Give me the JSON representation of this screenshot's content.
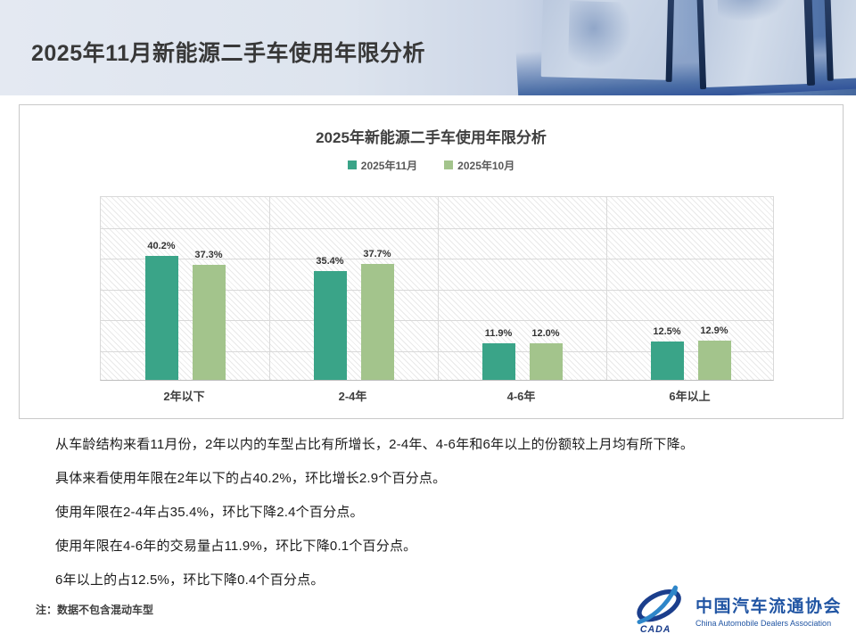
{
  "header": {
    "title": "2025年11月新能源二手车使用年限分析"
  },
  "chart": {
    "title": "2025年新能源二手车使用年限分析"
  },
  "chart_data": {
    "type": "bar",
    "title": "2025年新能源二手车使用年限分析",
    "categories": [
      "2年以下",
      "2-4年",
      "4-6年",
      "6年以上"
    ],
    "series": [
      {
        "name": "2025年11月",
        "color": "#3aa488",
        "values": [
          40.2,
          35.4,
          11.9,
          12.5
        ]
      },
      {
        "name": "2025年10月",
        "color": "#a3c48c",
        "values": [
          37.3,
          37.7,
          12.0,
          12.9
        ]
      }
    ],
    "value_suffix": "%",
    "ylim": [
      0,
      60
    ],
    "grid": true,
    "grid_step": 10,
    "legend_position": "top",
    "plot_background": "diagonal-hatch"
  },
  "body": {
    "paragraphs": [
      "从车龄结构来看11月份，2年以内的车型占比有所增长，2-4年、4-6年和6年以上的份额较上月均有所下降。",
      "具体来看使用年限在2年以下的占40.2%，环比增长2.9个百分点。",
      "使用年限在2-4年占35.4%，环比下降2.4个百分点。",
      "使用年限在4-6年的交易量占11.9%，环比下降0.1个百分点。",
      "6年以上的占12.5%，环比下降0.4个百分点。"
    ],
    "note": "注：数据不包含混动车型"
  },
  "footer": {
    "logo": {
      "org_cn": "中国汽车流通协会",
      "org_en": "China Automobile Dealers Association",
      "emblem": "cada-emblem",
      "brand_color": "#2155a3"
    }
  }
}
